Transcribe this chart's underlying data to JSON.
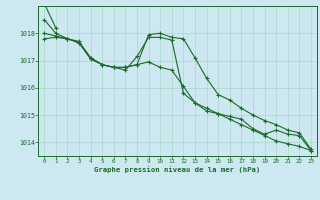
{
  "background_color": "#cde8f0",
  "grid_color": "#a8d8c8",
  "line_color": "#1a6b2a",
  "title": "Graphe pression niveau de la mer (hPa)",
  "xlim": [
    -0.5,
    23.5
  ],
  "ylim": [
    1013.5,
    1019.0
  ],
  "yticks": [
    1014,
    1015,
    1016,
    1017,
    1018
  ],
  "xticks": [
    0,
    1,
    2,
    3,
    4,
    5,
    6,
    7,
    8,
    9,
    10,
    11,
    12,
    13,
    14,
    15,
    16,
    17,
    18,
    19,
    20,
    21,
    22,
    23
  ],
  "series": [
    [
      1019.1,
      1018.2,
      null,
      null,
      null,
      null,
      null,
      null,
      null,
      null,
      null,
      null,
      null,
      null,
      null,
      null,
      null,
      null,
      null,
      null,
      null,
      null,
      null,
      null
    ],
    [
      1018.5,
      1018.0,
      1017.8,
      1017.7,
      1017.1,
      1016.85,
      1016.75,
      1016.75,
      1016.85,
      1016.95,
      1016.75,
      1016.65,
      1016.05,
      1015.45,
      1015.25,
      1015.05,
      1014.85,
      1014.65,
      1014.45,
      1014.25,
      1014.05,
      1013.95,
      1013.85,
      1013.7
    ],
    [
      1018.0,
      1017.9,
      1017.8,
      1017.65,
      1017.1,
      1016.85,
      1016.75,
      1016.75,
      1016.85,
      1017.95,
      1018.0,
      1017.85,
      1017.8,
      1017.1,
      1016.35,
      1015.75,
      1015.55,
      1015.25,
      1015.0,
      1014.8,
      1014.65,
      1014.45,
      1014.35,
      1013.75
    ],
    [
      1017.8,
      1017.85,
      1017.8,
      1017.65,
      1017.05,
      1016.85,
      1016.75,
      1016.65,
      1017.15,
      1017.85,
      1017.85,
      1017.75,
      1015.8,
      1015.45,
      1015.15,
      1015.05,
      1014.95,
      1014.85,
      1014.5,
      1014.3,
      1014.45,
      1014.3,
      1014.25,
      1013.7
    ]
  ]
}
